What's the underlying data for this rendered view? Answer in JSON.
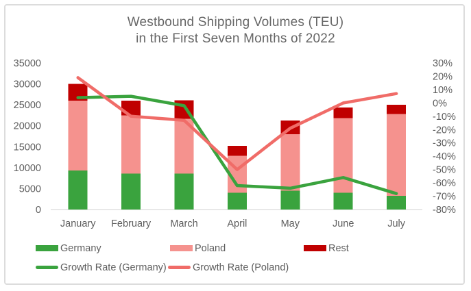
{
  "title": {
    "line1": "Westbound Shipping Volumes (TEU)",
    "line2": "in the First Seven Months of 2022"
  },
  "colors": {
    "germany": "#3AA33E",
    "poland": "#F5928E",
    "rest": "#C00000",
    "growth_germany": "#3AA33E",
    "growth_poland": "#F06C68",
    "axis_text": "#5D5D5D",
    "axis_line": "#D9D9D9",
    "title_text": "#666666"
  },
  "chart_data": {
    "type": "combo_stacked_bar_line",
    "title": "Westbound Shipping Volumes (TEU) in the First Seven Months of 2022",
    "categories": [
      "January",
      "February",
      "March",
      "April",
      "May",
      "June",
      "July"
    ],
    "bar_series": [
      {
        "name": "Germany",
        "color_key": "germany",
        "values": [
          9300,
          8600,
          8600,
          4000,
          4500,
          4000,
          3300
        ]
      },
      {
        "name": "Poland",
        "color_key": "poland",
        "values": [
          16700,
          13900,
          13100,
          8800,
          13500,
          17800,
          19500
        ]
      },
      {
        "name": "Rest",
        "color_key": "rest",
        "values": [
          4000,
          3500,
          4400,
          2400,
          3300,
          2600,
          2200
        ]
      }
    ],
    "bar_totals": [
      30000,
      26000,
      26100,
      15200,
      21300,
      24400,
      25000
    ],
    "line_series": [
      {
        "name": "Growth Rate (Germany)",
        "color_key": "growth_germany",
        "values_pct": [
          4,
          5,
          -2,
          -62,
          -64,
          -56,
          -68
        ]
      },
      {
        "name": "Growth Rate (Poland)",
        "color_key": "growth_poland",
        "values_pct": [
          19,
          -10,
          -13,
          -50,
          -19,
          0,
          7
        ]
      }
    ],
    "left_axis": {
      "min": 0,
      "max": 35000,
      "step": 5000,
      "labels": [
        "35000",
        "30000",
        "25000",
        "20000",
        "15000",
        "10000",
        "5000",
        "0"
      ]
    },
    "right_axis": {
      "min": -80,
      "max": 30,
      "step": 10,
      "labels": [
        "30%",
        "20%",
        "10%",
        "0%",
        "-10%",
        "-20%",
        "-30%",
        "-40%",
        "-50%",
        "-60%",
        "-70%",
        "-80%"
      ]
    },
    "gridlines": false,
    "legend_position": "bottom-left"
  },
  "legend": {
    "items": [
      {
        "label": "Germany",
        "type": "box",
        "color_key": "germany"
      },
      {
        "label": "Poland",
        "type": "box",
        "color_key": "poland"
      },
      {
        "label": "Rest",
        "type": "box",
        "color_key": "rest"
      },
      {
        "label": "Growth Rate (Germany)",
        "type": "line",
        "color_key": "growth_germany"
      },
      {
        "label": "Growth Rate (Poland)",
        "type": "line",
        "color_key": "growth_poland"
      }
    ]
  }
}
